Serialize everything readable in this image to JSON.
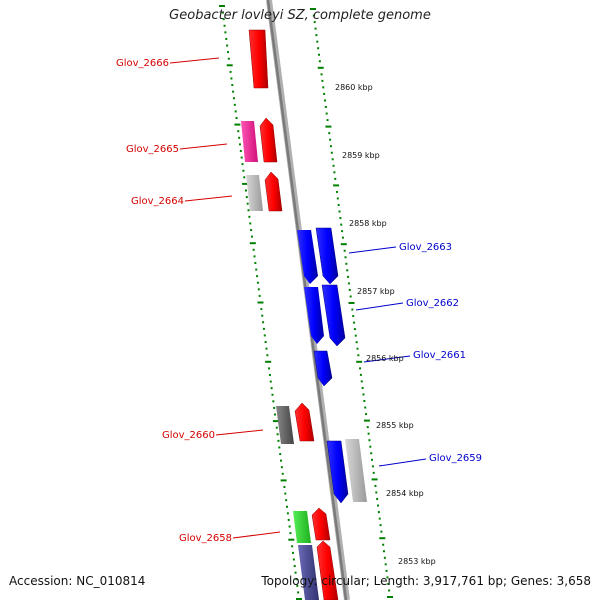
{
  "title": "Geobacter lovleyi SZ, complete genome",
  "footer": {
    "accession": "Accession: NC_010814",
    "topology": "Topology: circular; Length: 3,917,761 bp; Genes: 3,658"
  },
  "scale_labels": [
    "2860 kbp",
    "2859 kbp",
    "2858 kbp",
    "2857 kbp",
    "2856 kbp",
    "2855 kbp",
    "2854 kbp",
    "2853 kbp"
  ],
  "genes": [
    {
      "id": "Glov_2666",
      "color": "#d40000"
    },
    {
      "id": "Glov_2665",
      "color": "#d40000"
    },
    {
      "id": "Glov_2664",
      "color": "#d40000"
    },
    {
      "id": "Glov_2663",
      "color": "#0000cc"
    },
    {
      "id": "Glov_2662",
      "color": "#0000cc"
    },
    {
      "id": "Glov_2661",
      "color": "#0000cc"
    },
    {
      "id": "Glov_2660",
      "color": "#d40000"
    },
    {
      "id": "Glov_2659",
      "color": "#0000cc"
    },
    {
      "id": "Glov_2658",
      "color": "#d40000"
    }
  ],
  "colors": {
    "forward_strand": "#ff0000",
    "reverse_strand": "#0000ff",
    "cog_magenta": "#ff2d9b",
    "cog_gray": "#b8b8b8",
    "cog_darkgray": "#666666",
    "cog_green": "#33dd33",
    "cog_navy": "#4a4a9a",
    "backbone": "#8a8a8a",
    "ruler": "#008000"
  }
}
